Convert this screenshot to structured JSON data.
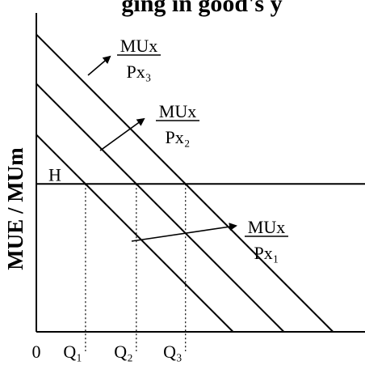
{
  "chart_data": {
    "type": "line",
    "title": "Change in good's price",
    "title_visible": "ging in good's y",
    "xlabel": "",
    "ylabel": "MUE / MUm",
    "origin_label": "0",
    "xlim": [
      0,
      10
    ],
    "ylim": [
      0,
      10
    ],
    "grid": false,
    "series": [
      {
        "numerator": "MUx",
        "denominator": "Px",
        "subscript": "1",
        "intercept": 6.0,
        "slope": -1.0
      },
      {
        "numerator": "MUx",
        "denominator": "Px",
        "subscript": "2",
        "intercept": 7.55,
        "slope": -1.0
      },
      {
        "numerator": "MUx",
        "denominator": "Px",
        "subscript": "3",
        "intercept": 9.05,
        "slope": -1.0
      }
    ],
    "hline": {
      "label": "H",
      "y": 4.5
    },
    "quantities": [
      {
        "base": "Q",
        "subscript": "1",
        "x": 1.5
      },
      {
        "base": "Q",
        "subscript": "2",
        "x": 3.05
      },
      {
        "base": "Q",
        "subscript": "3",
        "x": 4.55
      }
    ]
  },
  "colors": {
    "line": "#000000",
    "background": "#ffffff"
  }
}
